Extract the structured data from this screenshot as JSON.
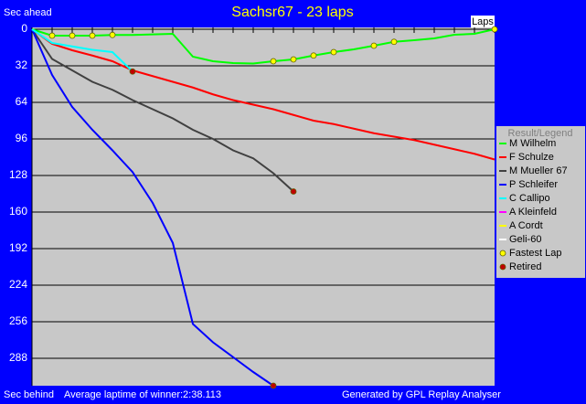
{
  "chart_data": {
    "type": "line",
    "title": "Sachsr67 - 23 laps",
    "y_label_top": "Sec ahead",
    "y_label_bottom": "Sec behind",
    "x_label": "Laps",
    "footer_left": "Average laptime of winner:2:38.113",
    "footer_right": "Generated by GPL Replay Analyser",
    "legend_title": "Result/Legend",
    "xlim": [
      0,
      23
    ],
    "ylim": [
      0,
      312
    ],
    "y_inverted": true,
    "yticks": [
      0,
      32,
      64,
      96,
      128,
      160,
      192,
      224,
      256,
      288
    ],
    "grid": true,
    "series": [
      {
        "name": "M Wilhelm",
        "color": "#00ff00",
        "x": [
          0,
          1,
          2,
          3,
          4,
          5,
          6,
          7,
          8,
          9,
          10,
          11,
          12,
          13,
          14,
          15,
          16,
          17,
          18,
          19,
          20,
          21,
          22,
          23
        ],
        "values": [
          0,
          5.6,
          5.6,
          5.6,
          5,
          5,
          4.5,
          4,
          24,
          28,
          29.6,
          30,
          28,
          26.4,
          23,
          20,
          17.6,
          14.4,
          11,
          9.6,
          8,
          4.8,
          4,
          0
        ]
      },
      {
        "name": "F Schulze",
        "color": "#ff0000",
        "x": [
          0,
          1,
          2,
          3,
          4,
          5,
          6,
          7,
          8,
          9,
          10,
          11,
          12,
          13,
          14,
          15,
          16,
          17,
          18,
          19,
          20,
          21,
          22,
          23
        ],
        "values": [
          0,
          12.8,
          18.4,
          23,
          28,
          36,
          41,
          46,
          51,
          57,
          62,
          66,
          70,
          75,
          80,
          83,
          87,
          91,
          94,
          97,
          101,
          105,
          109,
          114
        ]
      },
      {
        "name": "M Mueller 67",
        "color": "#404040",
        "x": [
          0,
          1,
          2,
          3,
          4,
          5,
          6,
          7,
          8,
          9,
          10,
          11,
          12,
          13
        ],
        "values": [
          0,
          26,
          36,
          46,
          53,
          62,
          70,
          78,
          88,
          96,
          106,
          113,
          126,
          142
        ]
      },
      {
        "name": "P Schleifer",
        "color": "#0000ff",
        "x": [
          0,
          1,
          2,
          3,
          4,
          5,
          6,
          7,
          8,
          9,
          10,
          11,
          12
        ],
        "values": [
          0,
          40,
          68,
          88,
          106,
          125,
          152,
          187,
          258,
          274,
          287,
          300,
          312
        ]
      },
      {
        "name": "C Callipo",
        "color": "#00ffff",
        "x": [
          0,
          1,
          2,
          3,
          4,
          5
        ],
        "values": [
          0,
          12,
          15,
          18,
          20,
          37
        ]
      },
      {
        "name": "A Kleinfeld",
        "color": "#ff00ff",
        "x": [],
        "values": []
      },
      {
        "name": "A Cordt",
        "color": "#ffff00",
        "x": [],
        "values": []
      },
      {
        "name": "Geli-60",
        "color": "#ffffff",
        "x": [],
        "values": []
      }
    ],
    "markers": [
      {
        "name": "Fastest Lap",
        "color": "#ffff00",
        "x": [
          1,
          2,
          3,
          4,
          12,
          13,
          14,
          15,
          17,
          18,
          23
        ],
        "values": [
          5.6,
          5.6,
          5.6,
          5,
          28,
          26.4,
          23,
          20,
          14.4,
          11,
          0
        ]
      },
      {
        "name": "Retired",
        "color": "#c00000",
        "x": [
          5,
          12,
          13
        ],
        "values": [
          37,
          312,
          142
        ]
      }
    ]
  }
}
